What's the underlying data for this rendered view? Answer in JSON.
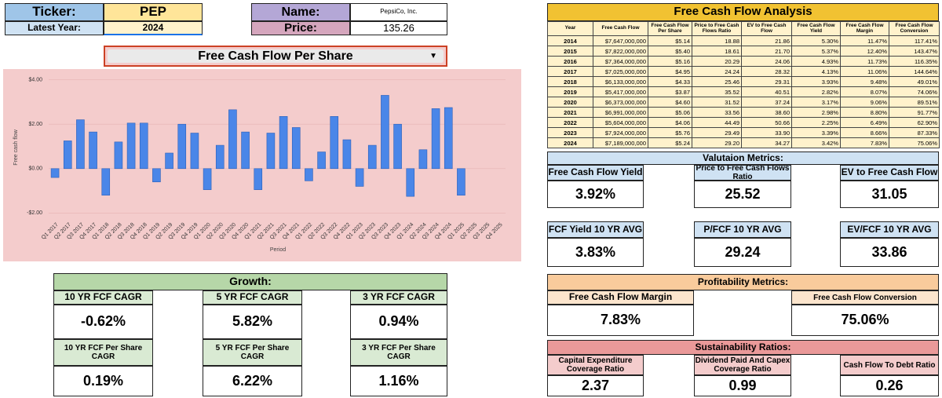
{
  "header": {
    "ticker_label": "Ticker:",
    "ticker": "PEP",
    "year_label": "Latest Year:",
    "year": "2024",
    "name_label": "Name:",
    "name": "PepsiCo, Inc.",
    "price_label": "Price:",
    "price": "135.26"
  },
  "dropdown": "Free Cash Flow Per Share",
  "chart_data": {
    "type": "bar",
    "ylabel": "Free cash flow",
    "xlabel": "Period",
    "color": "#4a86e8",
    "grid": true,
    "categories": [
      "Q1 2017",
      "Q2 2017",
      "Q3 2017",
      "Q4 2017",
      "Q1 2018",
      "Q2 2018",
      "Q3 2018",
      "Q4 2018",
      "Q1 2019",
      "Q2 2019",
      "Q3 2019",
      "Q4 2019",
      "Q1 2020",
      "Q2 2020",
      "Q3 2020",
      "Q4 2020",
      "Q1 2021",
      "Q2 2021",
      "Q3 2021",
      "Q4 2021",
      "Q1 2022",
      "Q2 2022",
      "Q3 2022",
      "Q4 2022",
      "Q1 2023",
      "Q2 2023",
      "Q3 2023",
      "Q4 2023",
      "Q1 2024",
      "Q2 2024",
      "Q3 2024",
      "Q4 2024",
      "Q1 2025",
      "Q2 2025",
      "Q3 2025",
      "Q4 2025"
    ],
    "values": [
      -0.4,
      1.25,
      2.2,
      1.65,
      -1.2,
      1.2,
      2.05,
      2.05,
      -0.6,
      0.7,
      2.0,
      1.6,
      -0.95,
      1.05,
      2.65,
      1.65,
      -0.95,
      1.6,
      2.35,
      1.85,
      -0.55,
      0.75,
      2.35,
      1.3,
      -0.8,
      1.05,
      3.3,
      2.0,
      -1.25,
      0.85,
      2.7,
      2.75,
      -1.2,
      null,
      null,
      null
    ],
    "ylim": [
      -2.2,
      4.2
    ],
    "yticks": [
      {
        "value": -2,
        "label": "-$2.00"
      },
      {
        "value": 0,
        "label": "$0.00"
      },
      {
        "value": 2,
        "label": "$2.00"
      },
      {
        "value": 4,
        "label": "$4.00"
      }
    ]
  },
  "fcf_table": {
    "title": "Free Cash Flow Analysis",
    "columns": [
      "Year",
      "Free Cash Flow",
      "Free Cash Flow Per Share",
      "Price to Free Cash Flows Ratio",
      "EV to Free Cash Flow",
      "Free Cash Flow Yield",
      "Free Cash Flow Margin",
      "Free Cash Flow Conversion"
    ],
    "rows": [
      [
        "2014",
        "$7,647,000,000",
        "$5.14",
        "18.88",
        "21.86",
        "5.30%",
        "11.47%",
        "117.41%"
      ],
      [
        "2015",
        "$7,822,000,000",
        "$5.40",
        "18.61",
        "21.70",
        "5.37%",
        "12.40%",
        "143.47%"
      ],
      [
        "2016",
        "$7,364,000,000",
        "$5.16",
        "20.29",
        "24.06",
        "4.93%",
        "11.73%",
        "116.35%"
      ],
      [
        "2017",
        "$7,025,000,000",
        "$4.95",
        "24.24",
        "28.32",
        "4.13%",
        "11.06%",
        "144.64%"
      ],
      [
        "2018",
        "$6,133,000,000",
        "$4.33",
        "25.46",
        "29.31",
        "3.93%",
        "9.48%",
        "49.01%"
      ],
      [
        "2019",
        "$5,417,000,000",
        "$3.87",
        "35.52",
        "40.51",
        "2.82%",
        "8.07%",
        "74.06%"
      ],
      [
        "2020",
        "$6,373,000,000",
        "$4.60",
        "31.52",
        "37.24",
        "3.17%",
        "9.06%",
        "89.51%"
      ],
      [
        "2021",
        "$6,991,000,000",
        "$5.06",
        "33.56",
        "38.60",
        "2.98%",
        "8.80%",
        "91.77%"
      ],
      [
        "2022",
        "$5,604,000,000",
        "$4.06",
        "44.49",
        "50.66",
        "2.25%",
        "6.49%",
        "62.90%"
      ],
      [
        "2023",
        "$7,924,000,000",
        "$5.76",
        "29.49",
        "33.90",
        "3.39%",
        "8.66%",
        "87.33%"
      ],
      [
        "2024",
        "$7,189,000,000",
        "$5.24",
        "29.20",
        "34.27",
        "3.42%",
        "7.83%",
        "75.06%"
      ]
    ]
  },
  "valuation": {
    "title": "Valutaion Metrics:",
    "metrics": [
      {
        "label": "Free Cash Flow Yield",
        "value": "3.92%"
      },
      {
        "label": "Price to Free Cash Flows Ratio",
        "value": "25.52"
      },
      {
        "label": "EV to Free Cash Flow",
        "value": "31.05"
      },
      {
        "label": "FCF Yield 10 YR AVG",
        "value": "3.83%"
      },
      {
        "label": "P/FCF 10 YR AVG",
        "value": "29.24"
      },
      {
        "label": "EV/FCF 10 YR AVG",
        "value": "33.86"
      }
    ]
  },
  "growth": {
    "title": "Growth:",
    "metrics": [
      {
        "label": "10 YR FCF CAGR",
        "value": "-0.62%"
      },
      {
        "label": "5 YR FCF CAGR",
        "value": "5.82%"
      },
      {
        "label": "3 YR FCF CAGR",
        "value": "0.94%"
      },
      {
        "label": "10 YR FCF Per Share CAGR",
        "value": "0.19%"
      },
      {
        "label": "5 YR FCF Per Share CAGR",
        "value": "6.22%"
      },
      {
        "label": "3 YR FCF Per Share CAGR",
        "value": "1.16%"
      }
    ]
  },
  "profitability": {
    "title": "Profitability Metrics:",
    "metrics": [
      {
        "label": "Free Cash Flow Margin",
        "value": "7.83%"
      },
      {
        "label": "Free Cash Flow Conversion",
        "value": "75.06%"
      }
    ]
  },
  "sustainability": {
    "title": "Sustainability Ratios:",
    "metrics": [
      {
        "label": "Capital Expenditure Coverage Ratio",
        "value": "2.37"
      },
      {
        "label": "Dividend Paid And Capex Coverage Ratio",
        "value": "0.99"
      },
      {
        "label": "Cash Flow To Debt Ratio",
        "value": "0.26"
      }
    ]
  }
}
